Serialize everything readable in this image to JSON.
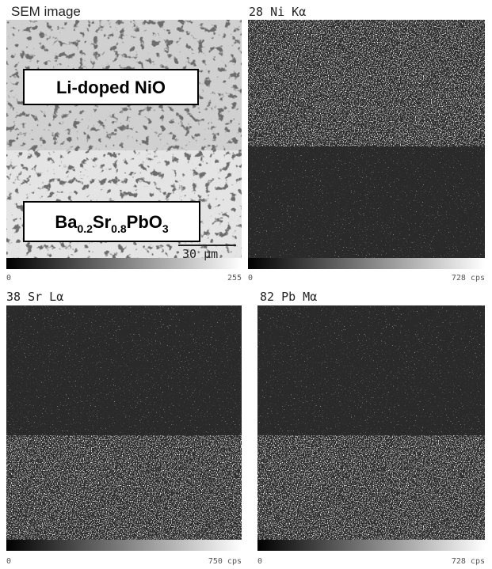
{
  "panels": [
    {
      "label": "SEM image",
      "scale_min": "0",
      "scale_max": "255",
      "annotations": {
        "top": "Li-doped NiO",
        "bottom": [
          "Ba",
          "0.2",
          "Sr",
          "0.8",
          "PbO",
          "3"
        ],
        "scale_bar": "30 μm"
      }
    },
    {
      "label": "28 Ni Kα",
      "scale_min": "0",
      "scale_max": "728 cps"
    },
    {
      "label": "38 Sr Lα",
      "scale_min": "0",
      "scale_max": "750 cps"
    },
    {
      "label": "82 Pb Mα",
      "scale_min": "0",
      "scale_max": "728 cps"
    }
  ]
}
